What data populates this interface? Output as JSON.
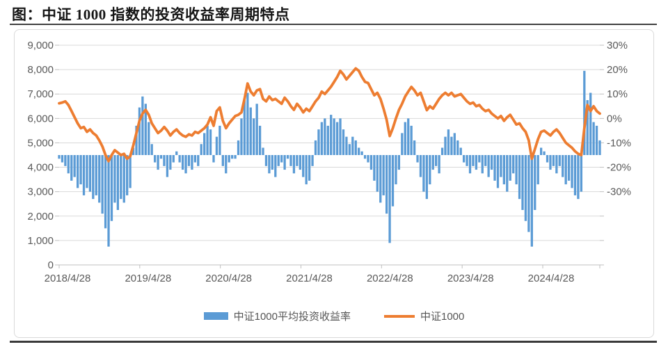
{
  "page": {
    "title": "图：中证 1000 指数的投资收益率周期特点"
  },
  "colors": {
    "bar": "#5B9BD5",
    "line": "#ED7D31",
    "gridline": "#D9D9D9",
    "axis_line": "#BFBFBF",
    "axis_text": "#595959",
    "rule": "#3A3A3A"
  },
  "chart_data": {
    "type": "combo",
    "title": "中证 1000 指数的投资收益率周期特点",
    "grid": true,
    "legend_position": "bottom",
    "x": {
      "start_date": "2018/4/28",
      "step_days": 14,
      "tick_labels": [
        "2018/4/28",
        "2019/4/28",
        "2020/4/28",
        "2021/4/28",
        "2022/4/28",
        "2023/4/28",
        "2024/4/28"
      ]
    },
    "axes": {
      "left": {
        "min": 0,
        "max": 9000,
        "step": 1000,
        "tick_labels": [
          "9,000",
          "8,000",
          "7,000",
          "6,000",
          "5,000",
          "4,000",
          "3,000",
          "2,000",
          "1,000",
          "0"
        ]
      },
      "right": {
        "min": -30,
        "max": 30,
        "step": 10,
        "unit": "%",
        "tick_labels": [
          "30%",
          "20%",
          "10%",
          "0%",
          "-10%",
          "-20%",
          "-30%"
        ]
      }
    },
    "series": [
      {
        "name": "中证1000平均投资收益率",
        "type": "bar",
        "axis": "right",
        "color": "#5B9BD5",
        "values": [
          -1,
          -2,
          -3,
          -5,
          -7,
          -6,
          -9,
          -8,
          -11,
          -9,
          -10,
          -12,
          -11,
          -13,
          -16,
          -20,
          -25,
          -18,
          -13,
          -15,
          -12,
          -13,
          -11,
          -9,
          2,
          8,
          13,
          16,
          14,
          9,
          3,
          -2,
          -4,
          -1,
          -3,
          -6,
          -4,
          -2,
          1,
          -2,
          -4,
          -5,
          -3,
          -4,
          -2,
          -3,
          3,
          6,
          8,
          7,
          -2,
          5,
          8,
          -3,
          -5,
          -2,
          -1,
          -1,
          4,
          10,
          15,
          17,
          13,
          10,
          14,
          8,
          2,
          -3,
          -5,
          -4,
          -6,
          -3,
          -2,
          -4,
          -1,
          -3,
          -5,
          -3,
          -4,
          -6,
          -8,
          -7,
          -3,
          4,
          7,
          9,
          10,
          8,
          11,
          10,
          9,
          10,
          7,
          5,
          3,
          5,
          4,
          2,
          1,
          -1,
          -2,
          -4,
          -7,
          -10,
          -13,
          -11,
          -16,
          -24,
          -14,
          -8,
          -4,
          6,
          9,
          10,
          8,
          4,
          -2,
          -6,
          -10,
          -12,
          -8,
          -4,
          -3,
          -5,
          2,
          5,
          7,
          5,
          6,
          4,
          2,
          -2,
          -3,
          -5,
          -3,
          -4,
          -2,
          -5,
          -3,
          -6,
          -4,
          -7,
          -9,
          -6,
          -8,
          -10,
          -7,
          -5,
          -8,
          -12,
          -15,
          -18,
          -21,
          -25,
          -15,
          -8,
          2,
          1,
          -2,
          -4,
          -3,
          -5,
          -3,
          -6,
          -8,
          -7,
          -9,
          -11,
          -12,
          -10,
          23,
          15,
          17,
          9,
          8,
          4
        ]
      },
      {
        "name": "中证1000",
        "type": "line",
        "axis": "left",
        "color": "#ED7D31",
        "values": [
          6620,
          6650,
          6700,
          6550,
          6300,
          6050,
          5800,
          5600,
          5650,
          5450,
          5550,
          5400,
          5300,
          5100,
          4850,
          4500,
          4250,
          4500,
          4700,
          4600,
          4500,
          4550,
          4350,
          4450,
          4900,
          5400,
          5900,
          6200,
          6350,
          6150,
          5800,
          5600,
          5400,
          5500,
          5650,
          5500,
          5300,
          5450,
          5550,
          5400,
          5300,
          5250,
          5350,
          5300,
          5450,
          5400,
          5500,
          5600,
          5750,
          6050,
          5700,
          6300,
          6450,
          5900,
          5600,
          5800,
          5950,
          6100,
          6150,
          6250,
          6800,
          7430,
          7100,
          6950,
          7150,
          7200,
          6800,
          6700,
          6900,
          6750,
          6800,
          6700,
          6600,
          6850,
          6700,
          6500,
          6350,
          6600,
          6450,
          6250,
          6400,
          6300,
          6500,
          6700,
          6850,
          7100,
          7000,
          7150,
          7300,
          7500,
          7700,
          7950,
          7800,
          7600,
          7750,
          7900,
          8050,
          7950,
          7700,
          7500,
          7450,
          7200,
          6950,
          7050,
          6800,
          6400,
          5950,
          5280,
          5600,
          6000,
          6350,
          6600,
          6900,
          7100,
          7290,
          7150,
          6950,
          7050,
          6700,
          6340,
          6500,
          6400,
          6600,
          6800,
          6950,
          7050,
          6950,
          7050,
          6900,
          6950,
          7000,
          6850,
          6700,
          6600,
          6650,
          6500,
          6550,
          6400,
          6300,
          6350,
          6200,
          6100,
          6000,
          6100,
          5900,
          6050,
          6150,
          5950,
          5750,
          5800,
          5600,
          5450,
          5100,
          4350,
          4750,
          5150,
          5450,
          5500,
          5400,
          5300,
          5450,
          5550,
          5400,
          5200,
          5000,
          4900,
          4800,
          4650,
          4550,
          4500,
          5600,
          6550,
          6300,
          6500,
          6300,
          6200
        ]
      }
    ]
  }
}
